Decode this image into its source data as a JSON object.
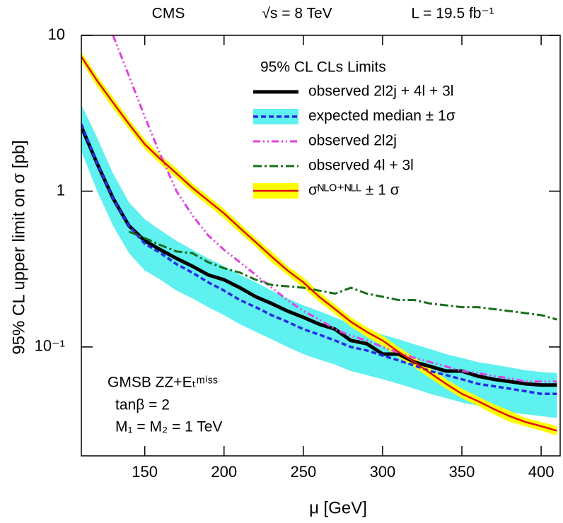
{
  "chart_data": {
    "type": "line",
    "header": [
      "CMS",
      "√s = 8 TeV",
      "L = 19.5 fb⁻¹"
    ],
    "xlabel": "μ  [GeV]",
    "ylabel": "95% CL upper limit on σ  [pb]",
    "log_y": true,
    "legend_title": "95% CL CLs Limits",
    "legend": "upper right",
    "annotations": [
      "GMSB  ZZ+Eₜᵐⁱˢˢ",
      "tanβ = 2",
      "M₁ = M₂ = 1 TeV"
    ],
    "xlim": [
      110,
      412
    ],
    "ylim": [
      0.02,
      10
    ],
    "xticks": [
      150,
      200,
      250,
      300,
      350,
      400
    ],
    "yticks": [
      {
        "value": 0.1,
        "label": "10⁻¹"
      },
      1,
      10
    ],
    "x": [
      110,
      120,
      130,
      140,
      150,
      160,
      170,
      180,
      190,
      200,
      210,
      220,
      230,
      240,
      250,
      260,
      270,
      280,
      290,
      300,
      310,
      320,
      330,
      340,
      350,
      360,
      370,
      380,
      390,
      400,
      410
    ],
    "series": [
      {
        "name": "observed 2l2j  + 4l + 3l",
        "color": "#000000",
        "line_style": "solid",
        "values": [
          2.6,
          1.5,
          0.9,
          0.6,
          0.48,
          0.42,
          0.37,
          0.33,
          0.29,
          0.27,
          0.24,
          0.21,
          0.19,
          0.17,
          0.155,
          0.14,
          0.13,
          0.11,
          0.105,
          0.09,
          0.09,
          0.08,
          0.075,
          0.07,
          0.07,
          0.065,
          0.062,
          0.06,
          0.058,
          0.057,
          0.057
        ]
      },
      {
        "name": "expected median ± 1σ",
        "color": "#2a2ae6",
        "band_color": "#5ff0f0",
        "line_style": "dashed",
        "values": [
          2.7,
          1.5,
          0.9,
          0.6,
          0.46,
          0.4,
          0.34,
          0.3,
          0.26,
          0.23,
          0.2,
          0.18,
          0.16,
          0.145,
          0.13,
          0.12,
          0.11,
          0.1,
          0.095,
          0.088,
          0.082,
          0.076,
          0.07,
          0.066,
          0.062,
          0.058,
          0.056,
          0.054,
          0.052,
          0.05,
          0.05
        ],
        "upper": [
          3.6,
          2.2,
          1.3,
          0.85,
          0.66,
          0.56,
          0.48,
          0.42,
          0.37,
          0.33,
          0.29,
          0.26,
          0.23,
          0.205,
          0.185,
          0.17,
          0.155,
          0.14,
          0.13,
          0.12,
          0.112,
          0.104,
          0.097,
          0.09,
          0.085,
          0.08,
          0.077,
          0.074,
          0.071,
          0.069,
          0.068
        ],
        "lower": [
          1.8,
          1.0,
          0.6,
          0.4,
          0.31,
          0.27,
          0.23,
          0.205,
          0.18,
          0.16,
          0.14,
          0.125,
          0.112,
          0.1,
          0.09,
          0.083,
          0.077,
          0.07,
          0.066,
          0.062,
          0.058,
          0.054,
          0.05,
          0.047,
          0.044,
          0.042,
          0.04,
          0.038,
          0.037,
          0.036,
          0.035
        ]
      },
      {
        "name": "observed 2l2j",
        "color": "#e040e0",
        "line_style": "dash-dot-dot",
        "values": [
          null,
          null,
          10,
          5.5,
          3.0,
          1.7,
          1.0,
          0.7,
          0.52,
          0.42,
          0.35,
          0.29,
          0.24,
          0.2,
          0.17,
          0.15,
          0.13,
          0.118,
          0.11,
          0.1,
          0.092,
          0.085,
          0.08,
          0.075,
          0.07,
          0.068,
          0.065,
          0.063,
          0.06,
          0.06,
          0.06
        ]
      },
      {
        "name": "observed 4l + 3l",
        "color": "#1a6e1a",
        "line_style": "dash-dot",
        "values": [
          null,
          null,
          null,
          0.55,
          0.5,
          0.45,
          0.41,
          0.4,
          0.35,
          0.32,
          0.3,
          0.27,
          0.25,
          0.245,
          0.24,
          0.23,
          0.22,
          0.24,
          0.22,
          0.21,
          0.2,
          0.2,
          0.19,
          0.185,
          0.18,
          0.18,
          0.175,
          0.17,
          0.165,
          0.16,
          0.15
        ]
      },
      {
        "name": "σᴺᴸᴼ⁺ᴺᴸᴸ ± 1 σ",
        "color": "#e01010",
        "band_color": "#ffff00",
        "line_style": "solid",
        "values": [
          7.3,
          5.1,
          3.7,
          2.7,
          2.0,
          1.6,
          1.3,
          1.05,
          0.87,
          0.72,
          0.58,
          0.47,
          0.38,
          0.31,
          0.26,
          0.21,
          0.175,
          0.145,
          0.125,
          0.11,
          0.093,
          0.08,
          0.068,
          0.058,
          0.05,
          0.045,
          0.04,
          0.036,
          0.033,
          0.031,
          0.029
        ],
        "upper": [
          7.8,
          5.5,
          4.0,
          2.9,
          2.15,
          1.7,
          1.4,
          1.12,
          0.93,
          0.77,
          0.62,
          0.5,
          0.41,
          0.33,
          0.28,
          0.225,
          0.187,
          0.155,
          0.134,
          0.118,
          0.1,
          0.086,
          0.073,
          0.062,
          0.054,
          0.048,
          0.043,
          0.039,
          0.035,
          0.033,
          0.031
        ],
        "lower": [
          6.8,
          4.7,
          3.4,
          2.5,
          1.86,
          1.49,
          1.21,
          0.98,
          0.81,
          0.67,
          0.54,
          0.44,
          0.35,
          0.29,
          0.24,
          0.195,
          0.163,
          0.135,
          0.116,
          0.102,
          0.086,
          0.074,
          0.063,
          0.054,
          0.047,
          0.042,
          0.037,
          0.033,
          0.031,
          0.029,
          0.027
        ]
      }
    ]
  }
}
